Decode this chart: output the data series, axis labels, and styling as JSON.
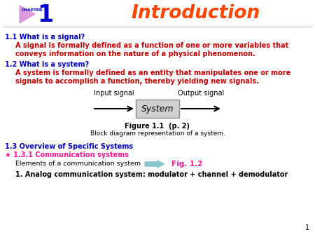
{
  "background_color": "#ffffff",
  "chapter_label": "CHAPTER",
  "chapter_number": "1",
  "title": "Introduction",
  "title_color": "#FF4500",
  "header_color": "#0000CC",
  "section_heading_color": "#0000CC",
  "body_text_color": "#CC0000",
  "section13_color": "#0000CC",
  "star_section_color": "#FF1493",
  "black_text_color": "#000000",
  "triangle_color": "#DD99DD",
  "s11": "1.1 What is a signal?",
  "s11_body1": "A signal is formally defined as a function of one or more variables that",
  "s11_body2": "conveys information on the nature of a physical phenomenon.",
  "s12": "1.2 What is a system?",
  "s12_body1": "A system is formally defined as an entity that manipulates one or more",
  "s12_body2": "signals to accomplish a function, thereby yielding new signals.",
  "fig_input": "Input signal",
  "fig_system": "System",
  "fig_output": "Output signal",
  "fig_caption1": "Figure 1.1  (p. 2)",
  "fig_caption2": "Block diagram representation of a system.",
  "s13": "1.3 Overview of Specific Systems",
  "s131": "★ 1.3.1 Communication systems",
  "s131_elem": "Elements of a communication system",
  "s131_fig": "Fig. 1.2",
  "s131_analog": "1. Analog communication system: modulator + channel + demodulator",
  "page_number": "1",
  "fig_color": "#FF1493"
}
